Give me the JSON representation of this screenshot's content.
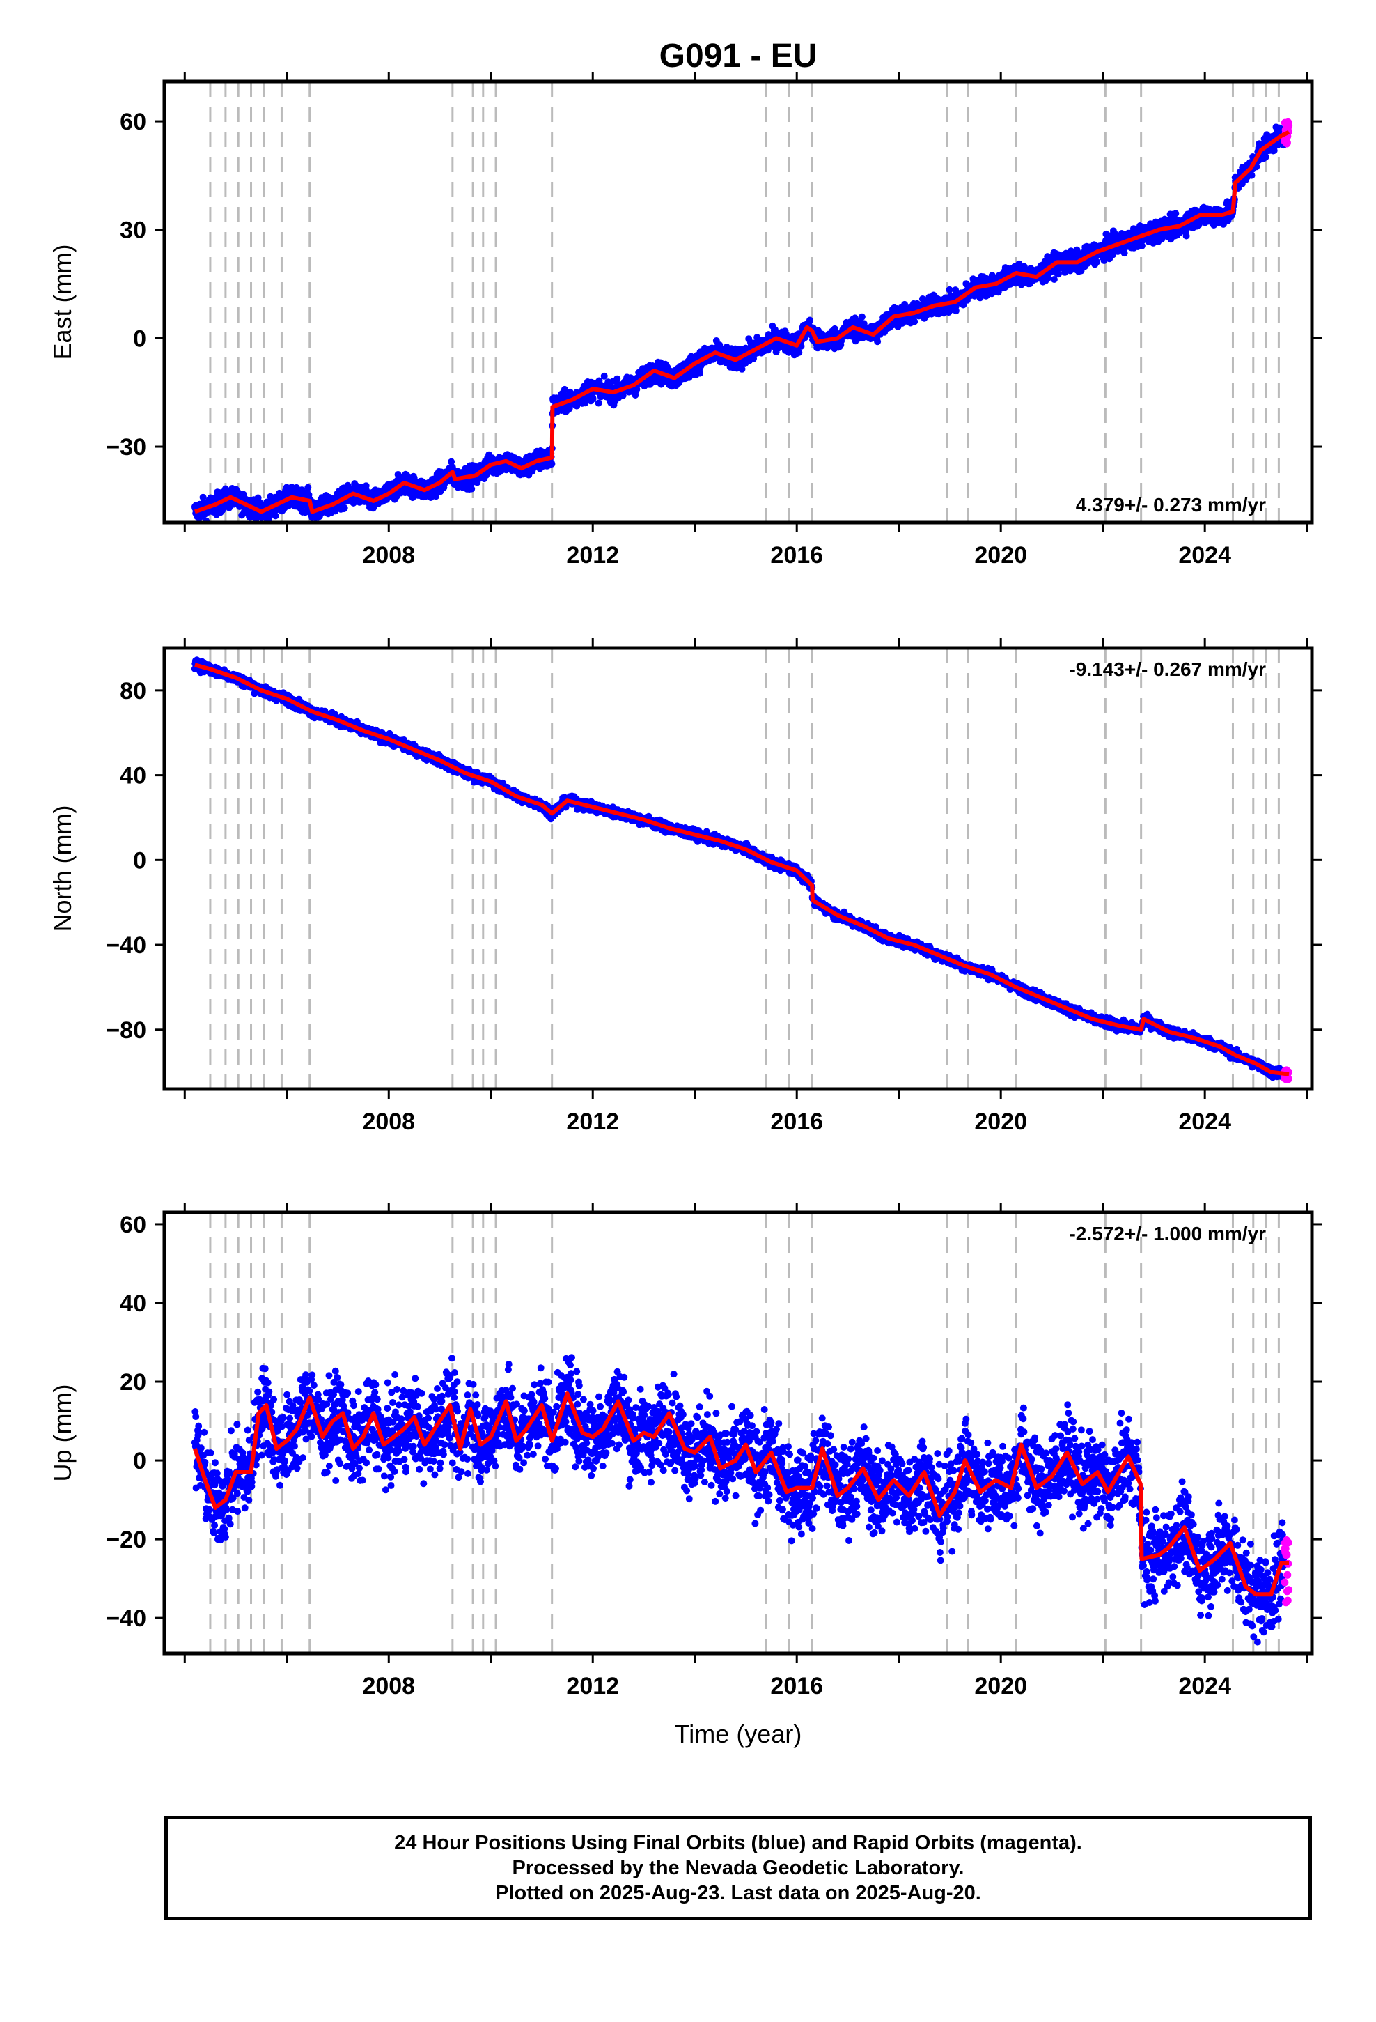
{
  "colors": {
    "final": "#0000ff",
    "rapid": "#ff00ff",
    "model": "#ff0000",
    "equipment": "#bbbbbb"
  },
  "chart_data": [
    {
      "type": "scatter",
      "title": "G091 - EU",
      "ylabel": "East (mm)",
      "xlabel": "",
      "xlim": [
        2003.6,
        2026.1
      ],
      "ylim": [
        -51,
        71
      ],
      "xticks": [
        2008,
        2012,
        2016,
        2020,
        2024
      ],
      "yticks": [
        -30,
        0,
        30,
        60
      ],
      "rate": "4.379+/- 0.273 mm/yr",
      "rate_position": "bottom-right",
      "grid": false,
      "equipment_changes": [
        2004.5,
        2004.8,
        2005.05,
        2005.3,
        2005.55,
        2005.9,
        2006.45,
        2009.25,
        2009.65,
        2009.85,
        2010.1,
        2011.2,
        2015.4,
        2015.85,
        2016.3,
        2018.95,
        2019.35,
        2020.3,
        2022.05,
        2022.75,
        2024.55,
        2024.95,
        2025.2,
        2025.45
      ],
      "model": [
        [
          2004.2,
          -48
        ],
        [
          2004.6,
          -46
        ],
        [
          2004.9,
          -44
        ],
        [
          2005.2,
          -46
        ],
        [
          2005.5,
          -48
        ],
        [
          2005.8,
          -46
        ],
        [
          2006.1,
          -44
        ],
        [
          2006.45,
          -45
        ],
        [
          2006.5,
          -48
        ],
        [
          2006.9,
          -46
        ],
        [
          2007.3,
          -43
        ],
        [
          2007.7,
          -45
        ],
        [
          2008.0,
          -43
        ],
        [
          2008.3,
          -40
        ],
        [
          2008.7,
          -42
        ],
        [
          2009.0,
          -40
        ],
        [
          2009.25,
          -37
        ],
        [
          2009.3,
          -39
        ],
        [
          2009.7,
          -38
        ],
        [
          2010.0,
          -35
        ],
        [
          2010.3,
          -34
        ],
        [
          2010.6,
          -36
        ],
        [
          2010.9,
          -34
        ],
        [
          2011.2,
          -33
        ],
        [
          2011.21,
          -19
        ],
        [
          2011.6,
          -17
        ],
        [
          2012.0,
          -14
        ],
        [
          2012.4,
          -15
        ],
        [
          2012.8,
          -13
        ],
        [
          2013.2,
          -9
        ],
        [
          2013.6,
          -11
        ],
        [
          2014.0,
          -7
        ],
        [
          2014.4,
          -4
        ],
        [
          2014.8,
          -6
        ],
        [
          2015.2,
          -3
        ],
        [
          2015.6,
          0
        ],
        [
          2016.0,
          -2
        ],
        [
          2016.2,
          3
        ],
        [
          2016.3,
          2
        ],
        [
          2016.4,
          -1
        ],
        [
          2016.8,
          0
        ],
        [
          2017.1,
          3
        ],
        [
          2017.5,
          1
        ],
        [
          2017.9,
          6
        ],
        [
          2018.3,
          7
        ],
        [
          2018.7,
          9
        ],
        [
          2019.1,
          10
        ],
        [
          2019.5,
          14
        ],
        [
          2019.9,
          15
        ],
        [
          2020.3,
          18
        ],
        [
          2020.7,
          17
        ],
        [
          2021.1,
          21
        ],
        [
          2021.5,
          21
        ],
        [
          2021.9,
          24
        ],
        [
          2022.3,
          26
        ],
        [
          2022.7,
          28
        ],
        [
          2023.1,
          30
        ],
        [
          2023.5,
          31
        ],
        [
          2023.9,
          34
        ],
        [
          2024.3,
          34
        ],
        [
          2024.55,
          35
        ],
        [
          2024.6,
          43
        ],
        [
          2024.9,
          47
        ],
        [
          2025.1,
          52
        ],
        [
          2025.5,
          56
        ],
        [
          2025.65,
          57
        ]
      ]
    },
    {
      "type": "scatter",
      "title": "",
      "ylabel": "North (mm)",
      "xlabel": "",
      "xlim": [
        2003.6,
        2026.1
      ],
      "ylim": [
        -108,
        100
      ],
      "xticks": [
        2008,
        2012,
        2016,
        2020,
        2024
      ],
      "yticks": [
        -80,
        -40,
        0,
        40,
        80
      ],
      "rate": "-9.143+/- 0.267 mm/yr",
      "rate_position": "top-right",
      "grid": false,
      "equipment_changes": [
        2004.5,
        2004.8,
        2005.05,
        2005.3,
        2005.55,
        2005.9,
        2006.45,
        2009.25,
        2009.65,
        2009.85,
        2010.1,
        2011.2,
        2015.4,
        2015.85,
        2016.3,
        2018.95,
        2019.35,
        2020.3,
        2022.05,
        2022.75,
        2024.55,
        2024.95,
        2025.2,
        2025.45
      ],
      "model": [
        [
          2004.2,
          92
        ],
        [
          2004.5,
          90
        ],
        [
          2005.0,
          86
        ],
        [
          2005.5,
          80
        ],
        [
          2006.0,
          76
        ],
        [
          2006.5,
          70
        ],
        [
          2007.0,
          66
        ],
        [
          2007.5,
          61
        ],
        [
          2008.0,
          57
        ],
        [
          2008.5,
          52
        ],
        [
          2009.0,
          47
        ],
        [
          2009.5,
          41
        ],
        [
          2010.0,
          37
        ],
        [
          2010.5,
          30
        ],
        [
          2011.0,
          26
        ],
        [
          2011.2,
          22
        ],
        [
          2011.5,
          28
        ],
        [
          2012.0,
          25
        ],
        [
          2012.5,
          22
        ],
        [
          2013.0,
          19
        ],
        [
          2013.5,
          15
        ],
        [
          2014.0,
          12
        ],
        [
          2014.5,
          9
        ],
        [
          2015.0,
          5
        ],
        [
          2015.5,
          -1
        ],
        [
          2016.0,
          -5
        ],
        [
          2016.3,
          -12
        ],
        [
          2016.31,
          -19
        ],
        [
          2016.8,
          -26
        ],
        [
          2017.3,
          -31
        ],
        [
          2017.8,
          -37
        ],
        [
          2018.3,
          -40
        ],
        [
          2018.8,
          -45
        ],
        [
          2019.3,
          -50
        ],
        [
          2019.8,
          -54
        ],
        [
          2020.3,
          -60
        ],
        [
          2020.8,
          -65
        ],
        [
          2021.3,
          -70
        ],
        [
          2021.8,
          -75
        ],
        [
          2022.3,
          -78
        ],
        [
          2022.75,
          -80
        ],
        [
          2022.8,
          -75
        ],
        [
          2023.3,
          -81
        ],
        [
          2023.8,
          -84
        ],
        [
          2024.3,
          -88
        ],
        [
          2024.6,
          -92
        ],
        [
          2025.0,
          -96
        ],
        [
          2025.3,
          -100
        ],
        [
          2025.65,
          -101
        ]
      ]
    },
    {
      "type": "scatter",
      "title": "",
      "ylabel": "Up (mm)",
      "xlabel": "Time (year)",
      "xlim": [
        2003.6,
        2026.1
      ],
      "ylim": [
        -49,
        63
      ],
      "xticks": [
        2008,
        2012,
        2016,
        2020,
        2024
      ],
      "yticks": [
        -40,
        -20,
        0,
        20,
        40,
        60
      ],
      "rate": "-2.572+/- 1.000 mm/yr",
      "rate_position": "top-right",
      "grid": false,
      "equipment_changes": [
        2004.5,
        2004.8,
        2005.05,
        2005.3,
        2005.55,
        2005.9,
        2006.45,
        2009.25,
        2009.65,
        2009.85,
        2010.1,
        2011.2,
        2015.4,
        2015.85,
        2016.3,
        2018.95,
        2019.35,
        2020.3,
        2022.05,
        2022.75,
        2024.55,
        2024.95,
        2025.2,
        2025.45
      ],
      "model": [
        [
          2004.2,
          3
        ],
        [
          2004.4,
          -5
        ],
        [
          2004.6,
          -12
        ],
        [
          2004.8,
          -10
        ],
        [
          2005.0,
          -3
        ],
        [
          2005.3,
          -3
        ],
        [
          2005.45,
          12
        ],
        [
          2005.6,
          14
        ],
        [
          2005.8,
          3
        ],
        [
          2006.0,
          5
        ],
        [
          2006.2,
          8
        ],
        [
          2006.45,
          16
        ],
        [
          2006.7,
          6
        ],
        [
          2006.9,
          10
        ],
        [
          2007.1,
          12
        ],
        [
          2007.3,
          3
        ],
        [
          2007.5,
          6
        ],
        [
          2007.7,
          12
        ],
        [
          2007.9,
          4
        ],
        [
          2008.1,
          6
        ],
        [
          2008.3,
          8
        ],
        [
          2008.5,
          11
        ],
        [
          2008.7,
          4
        ],
        [
          2008.9,
          8
        ],
        [
          2009.2,
          14
        ],
        [
          2009.4,
          3
        ],
        [
          2009.6,
          13
        ],
        [
          2009.8,
          4
        ],
        [
          2010.0,
          6
        ],
        [
          2010.3,
          15
        ],
        [
          2010.5,
          5
        ],
        [
          2010.7,
          8
        ],
        [
          2011.0,
          14
        ],
        [
          2011.2,
          5
        ],
        [
          2011.5,
          17
        ],
        [
          2011.8,
          7
        ],
        [
          2012.0,
          6
        ],
        [
          2012.2,
          8
        ],
        [
          2012.5,
          15
        ],
        [
          2012.8,
          5
        ],
        [
          2013.0,
          7
        ],
        [
          2013.2,
          6
        ],
        [
          2013.5,
          12
        ],
        [
          2013.8,
          3
        ],
        [
          2014.0,
          2
        ],
        [
          2014.3,
          6
        ],
        [
          2014.5,
          -2
        ],
        [
          2014.8,
          0
        ],
        [
          2015.0,
          4
        ],
        [
          2015.2,
          -3
        ],
        [
          2015.5,
          2
        ],
        [
          2015.8,
          -8
        ],
        [
          2016.0,
          -7
        ],
        [
          2016.3,
          -7
        ],
        [
          2016.5,
          3
        ],
        [
          2016.8,
          -9
        ],
        [
          2017.0,
          -7
        ],
        [
          2017.3,
          -2
        ],
        [
          2017.6,
          -10
        ],
        [
          2017.9,
          -5
        ],
        [
          2018.2,
          -9
        ],
        [
          2018.5,
          -3
        ],
        [
          2018.8,
          -14
        ],
        [
          2019.1,
          -8
        ],
        [
          2019.3,
          0
        ],
        [
          2019.6,
          -8
        ],
        [
          2019.9,
          -5
        ],
        [
          2020.2,
          -7
        ],
        [
          2020.4,
          4
        ],
        [
          2020.7,
          -7
        ],
        [
          2021.0,
          -4
        ],
        [
          2021.3,
          2
        ],
        [
          2021.6,
          -6
        ],
        [
          2021.9,
          -3
        ],
        [
          2022.1,
          -8
        ],
        [
          2022.5,
          1
        ],
        [
          2022.74,
          -6
        ],
        [
          2022.76,
          -25
        ],
        [
          2023.1,
          -24
        ],
        [
          2023.3,
          -22
        ],
        [
          2023.6,
          -17
        ],
        [
          2023.9,
          -28
        ],
        [
          2024.2,
          -25
        ],
        [
          2024.5,
          -21
        ],
        [
          2024.8,
          -32
        ],
        [
          2025.0,
          -34
        ],
        [
          2025.3,
          -34
        ],
        [
          2025.5,
          -26
        ],
        [
          2025.65,
          -26
        ]
      ]
    }
  ],
  "footer": {
    "line1": "24 Hour Positions Using Final Orbits (blue) and Rapid Orbits (magenta).",
    "line2": "Processed by the Nevada Geodetic Laboratory.",
    "line3": "Plotted on 2025-Aug-23. Last data on 2025-Aug-20."
  }
}
